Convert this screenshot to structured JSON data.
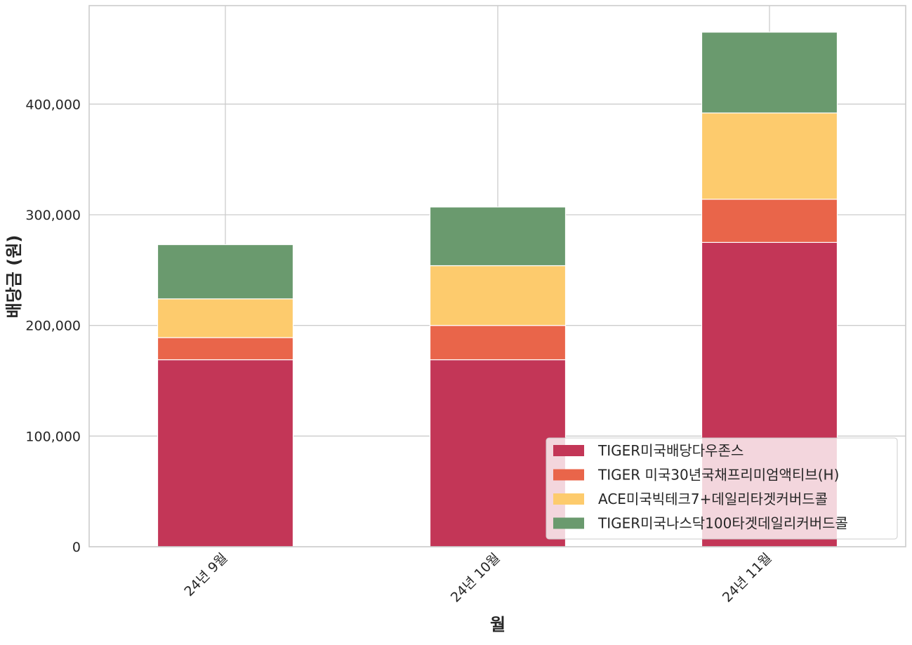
{
  "chart_data": {
    "type": "bar",
    "stacked": true,
    "title": "",
    "xlabel": "월",
    "ylabel": "배당금 (원)",
    "categories": [
      "24년 9월",
      "24년 10월",
      "24년 11월"
    ],
    "series": [
      {
        "name": "TIGER미국배당다우존스",
        "color": "#c33657",
        "values": [
          169000,
          169000,
          275000
        ]
      },
      {
        "name": "TIGER 미국30년국채프리미엄액티브(H)",
        "color": "#e9654a",
        "values": [
          20000,
          31000,
          39000
        ]
      },
      {
        "name": "ACE미국빅테크7+데일리타겟커버드콜",
        "color": "#fdcb6d",
        "values": [
          35000,
          54000,
          78000
        ]
      },
      {
        "name": "TIGER미국나스닥100타겟데일리커버드콜",
        "color": "#6a9a6e",
        "values": [
          49000,
          53000,
          73000
        ]
      }
    ],
    "ylim": [
      0,
      489000
    ],
    "yticks": [
      0,
      100000,
      200000,
      300000,
      400000
    ],
    "ytick_labels": [
      "0",
      "100,000",
      "200,000",
      "300,000",
      "400,000"
    ],
    "grid": true,
    "legend_position": "lower-right"
  }
}
